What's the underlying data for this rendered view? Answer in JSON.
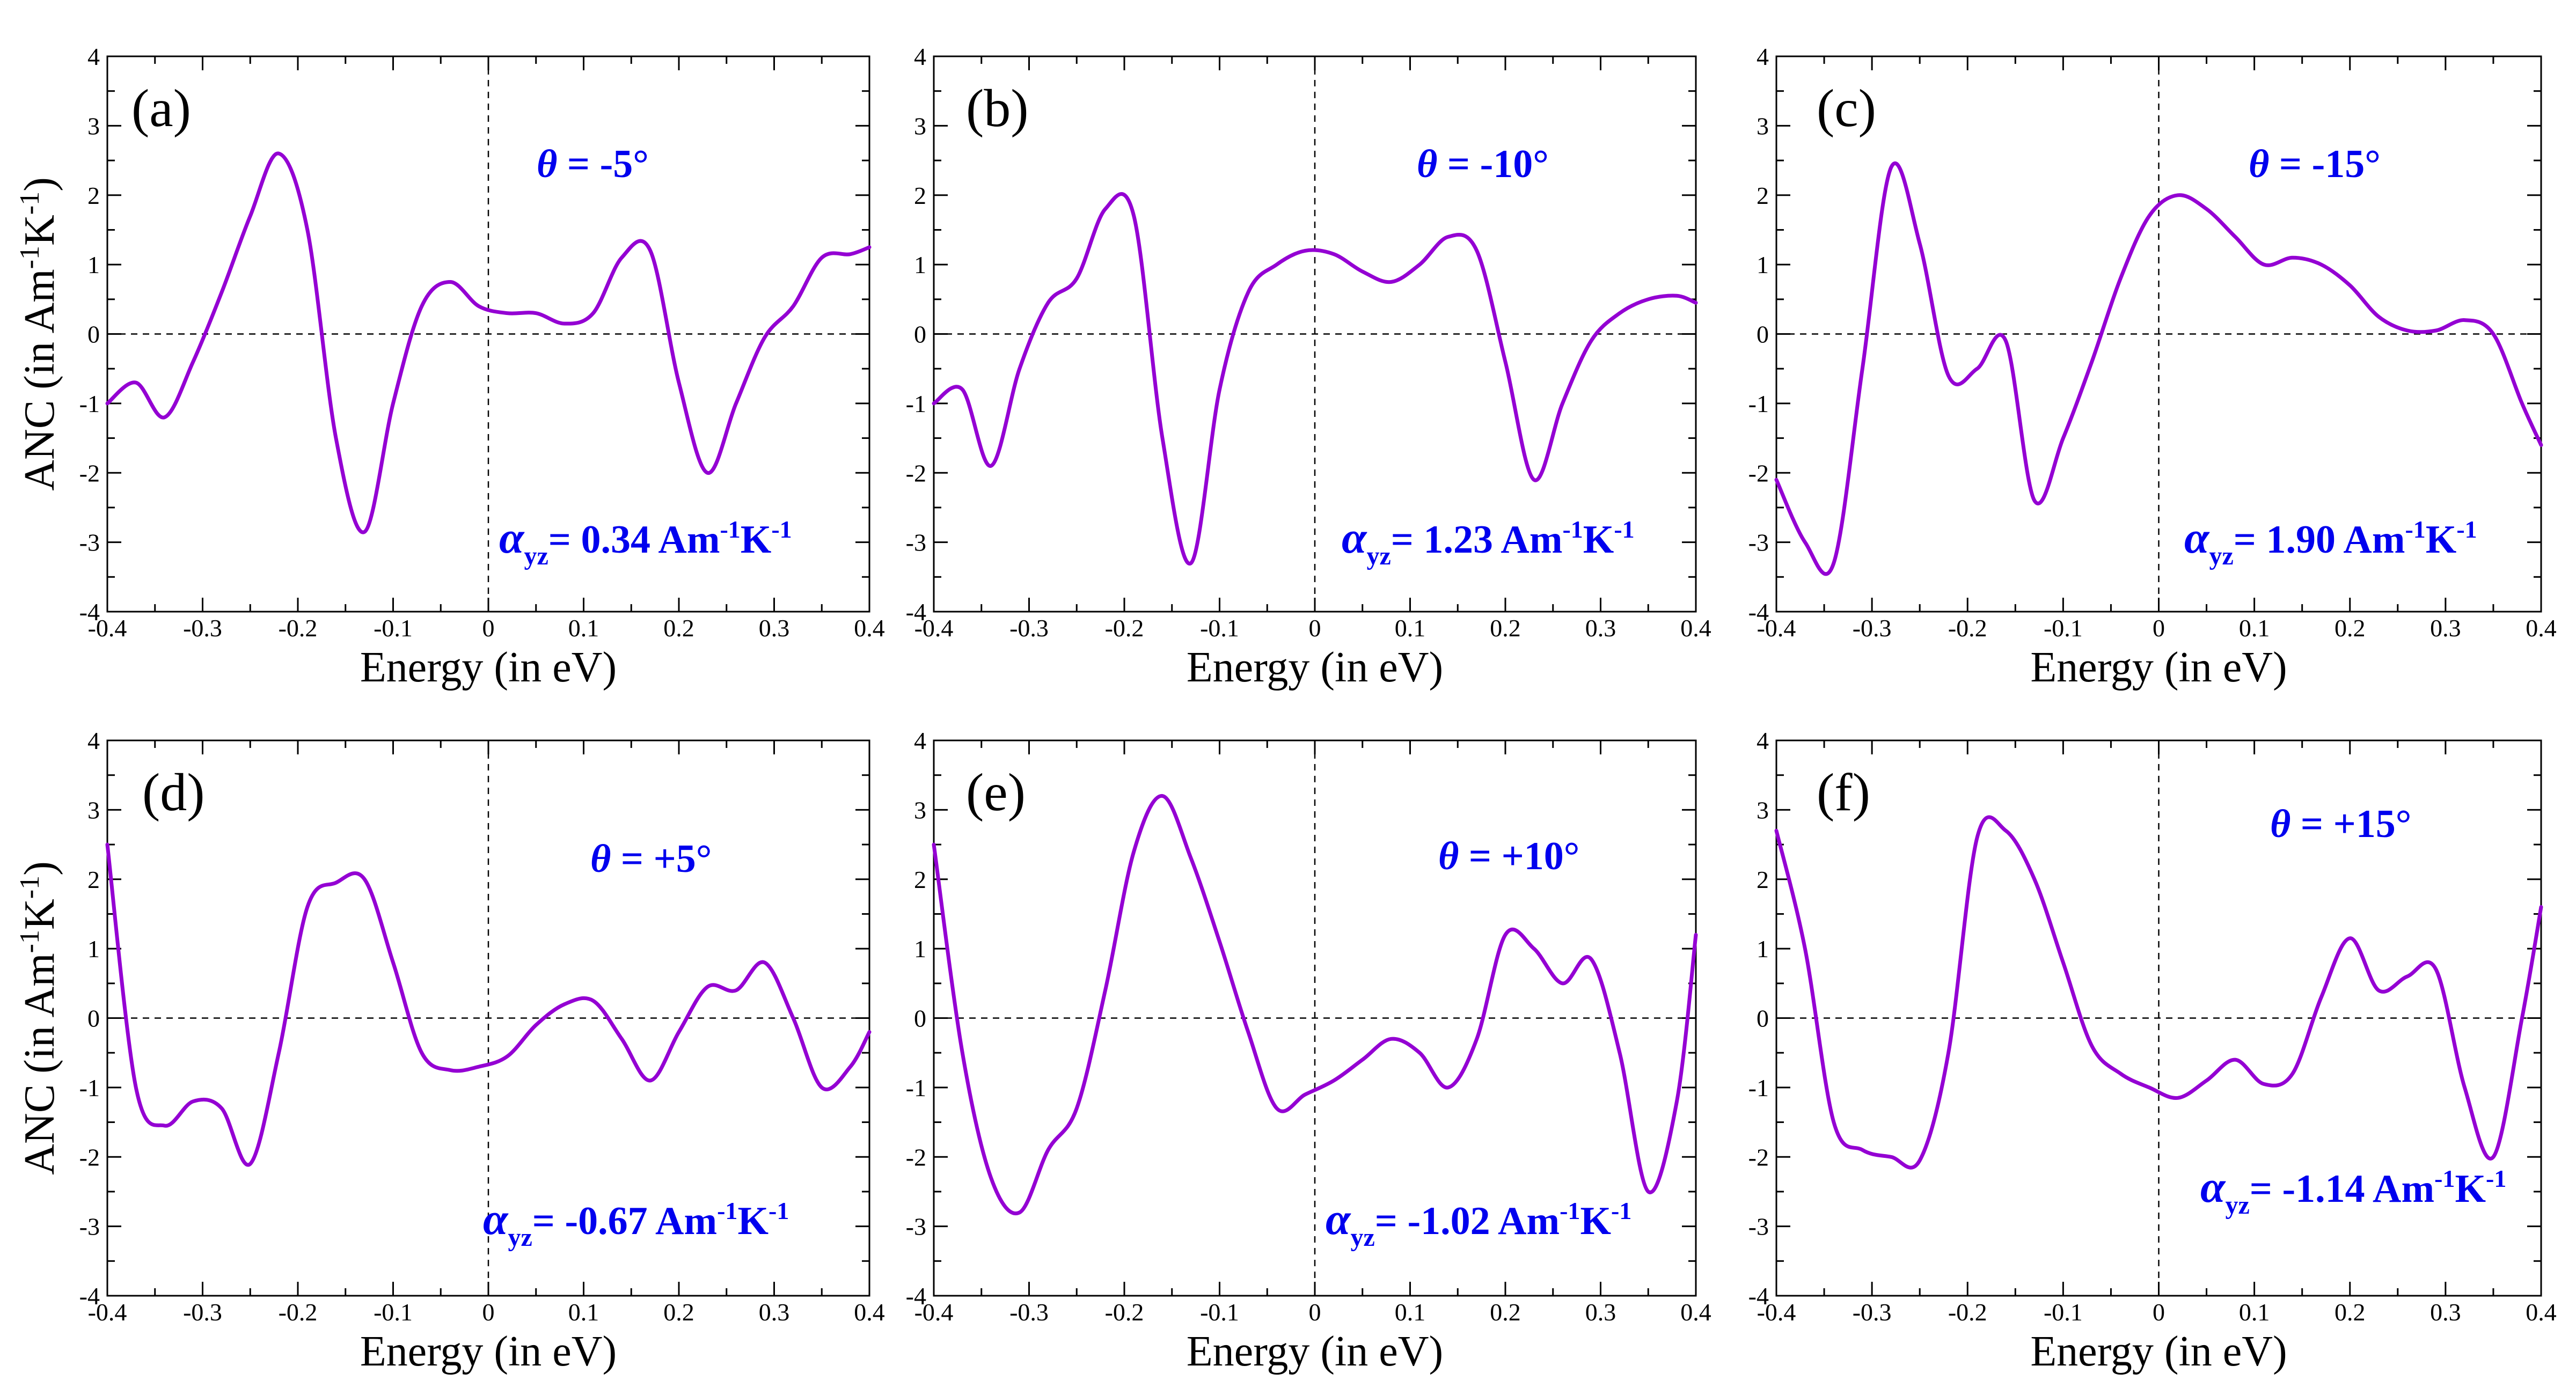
{
  "chart_data": [
    {
      "type": "line",
      "panel": "(a)",
      "theta_label": "θ = -5°",
      "alpha_label": "α",
      "alpha_sub": "yz",
      "alpha_value": "= 0.34 Am",
      "xlabel": "Energy (in eV)",
      "ylabel": "ANC (in Am-1K-1)",
      "xlim": [
        -0.4,
        0.4
      ],
      "ylim": [
        -4,
        4
      ],
      "x": [
        -0.4,
        -0.37,
        -0.34,
        -0.31,
        -0.28,
        -0.25,
        -0.22,
        -0.19,
        -0.16,
        -0.13,
        -0.1,
        -0.07,
        -0.04,
        -0.01,
        0.02,
        0.05,
        0.08,
        0.11,
        0.14,
        0.17,
        0.2,
        0.23,
        0.26,
        0.29,
        0.32,
        0.35,
        0.38,
        0.4
      ],
      "values": [
        -1.0,
        -0.7,
        -1.2,
        -0.4,
        0.6,
        1.7,
        2.6,
        1.5,
        -1.5,
        -2.85,
        -1.0,
        0.4,
        0.75,
        0.4,
        0.3,
        0.3,
        0.15,
        0.3,
        1.1,
        1.2,
        -0.7,
        -2.0,
        -1.0,
        -0.05,
        0.4,
        1.1,
        1.15,
        1.25
      ]
    },
    {
      "type": "line",
      "panel": "(b)",
      "theta_label": "θ = -10°",
      "alpha_label": "α",
      "alpha_sub": "yz",
      "alpha_value": "= 1.23 Am",
      "xlabel": "Energy (in eV)",
      "ylabel": "",
      "xlim": [
        -0.4,
        0.4
      ],
      "ylim": [
        -4,
        4
      ],
      "x": [
        -0.4,
        -0.37,
        -0.34,
        -0.31,
        -0.28,
        -0.25,
        -0.22,
        -0.19,
        -0.16,
        -0.13,
        -0.1,
        -0.07,
        -0.04,
        -0.01,
        0.02,
        0.05,
        0.08,
        0.11,
        0.14,
        0.17,
        0.2,
        0.23,
        0.26,
        0.29,
        0.32,
        0.35,
        0.38,
        0.4
      ],
      "values": [
        -1.0,
        -0.8,
        -1.9,
        -0.5,
        0.45,
        0.8,
        1.8,
        1.7,
        -1.5,
        -3.3,
        -0.8,
        0.6,
        1.0,
        1.2,
        1.15,
        0.9,
        0.75,
        1.0,
        1.4,
        1.2,
        -0.4,
        -2.1,
        -1.0,
        -0.1,
        0.3,
        0.5,
        0.55,
        0.45
      ]
    },
    {
      "type": "line",
      "panel": "(c)",
      "theta_label": "θ = -15°",
      "alpha_label": "α",
      "alpha_sub": "yz",
      "alpha_value": "= 1.90 Am",
      "xlabel": "Energy (in eV)",
      "ylabel": "",
      "xlim": [
        -0.4,
        0.4
      ],
      "ylim": [
        -4,
        4
      ],
      "x": [
        -0.4,
        -0.37,
        -0.34,
        -0.31,
        -0.28,
        -0.25,
        -0.22,
        -0.19,
        -0.16,
        -0.13,
        -0.1,
        -0.07,
        -0.04,
        -0.01,
        0.02,
        0.05,
        0.08,
        0.11,
        0.14,
        0.17,
        0.2,
        0.23,
        0.26,
        0.29,
        0.32,
        0.35,
        0.38,
        0.4
      ],
      "values": [
        -2.1,
        -3.0,
        -3.3,
        -0.5,
        2.4,
        1.3,
        -0.6,
        -0.5,
        -0.1,
        -2.4,
        -1.5,
        -0.4,
        0.8,
        1.7,
        2.0,
        1.8,
        1.4,
        1.0,
        1.1,
        1.0,
        0.7,
        0.25,
        0.05,
        0.05,
        0.2,
        0.0,
        -1.0,
        -1.6
      ]
    },
    {
      "type": "line",
      "panel": "(d)",
      "theta_label": "θ = +5°",
      "alpha_label": "α",
      "alpha_sub": "yz",
      "alpha_value": "= -0.67 Am",
      "xlabel": "Energy (in eV)",
      "ylabel": "ANC (in Am-1K-1)",
      "xlim": [
        -0.4,
        0.4
      ],
      "ylim": [
        -4,
        4
      ],
      "x": [
        -0.4,
        -0.37,
        -0.34,
        -0.31,
        -0.28,
        -0.25,
        -0.22,
        -0.19,
        -0.16,
        -0.13,
        -0.1,
        -0.07,
        -0.04,
        -0.01,
        0.02,
        0.05,
        0.08,
        0.11,
        0.14,
        0.17,
        0.2,
        0.23,
        0.26,
        0.29,
        0.32,
        0.35,
        0.38,
        0.4
      ],
      "values": [
        2.5,
        -1.0,
        -1.55,
        -1.2,
        -1.3,
        -2.1,
        -0.5,
        1.6,
        1.95,
        2.0,
        0.8,
        -0.5,
        -0.75,
        -0.7,
        -0.55,
        -0.1,
        0.2,
        0.25,
        -0.3,
        -0.9,
        -0.2,
        0.45,
        0.4,
        0.8,
        0.0,
        -1.0,
        -0.7,
        -0.2
      ]
    },
    {
      "type": "line",
      "panel": "(e)",
      "theta_label": "θ = +10°",
      "alpha_label": "α",
      "alpha_sub": "yz",
      "alpha_value": "= -1.02 Am",
      "xlabel": "Energy (in eV)",
      "ylabel": "",
      "xlim": [
        -0.4,
        0.4
      ],
      "ylim": [
        -4,
        4
      ],
      "x": [
        -0.4,
        -0.37,
        -0.34,
        -0.31,
        -0.28,
        -0.25,
        -0.22,
        -0.19,
        -0.16,
        -0.13,
        -0.1,
        -0.07,
        -0.04,
        -0.01,
        0.02,
        0.05,
        0.08,
        0.11,
        0.14,
        0.17,
        0.2,
        0.23,
        0.26,
        0.29,
        0.32,
        0.35,
        0.38,
        0.4
      ],
      "values": [
        2.5,
        -0.5,
        -2.3,
        -2.8,
        -1.9,
        -1.3,
        0.4,
        2.4,
        3.2,
        2.3,
        1.1,
        -0.2,
        -1.3,
        -1.1,
        -0.9,
        -0.6,
        -0.3,
        -0.5,
        -1.0,
        -0.3,
        1.2,
        1.0,
        0.5,
        0.85,
        -0.5,
        -2.5,
        -1.2,
        1.2
      ]
    },
    {
      "type": "line",
      "panel": "(f)",
      "theta_label": "θ = +15°",
      "alpha_label": "α",
      "alpha_sub": "yz",
      "alpha_value": "= -1.14 Am",
      "xlabel": "Energy (in eV)",
      "ylabel": "",
      "xlim": [
        -0.4,
        0.4
      ],
      "ylim": [
        -4,
        4
      ],
      "x": [
        -0.4,
        -0.37,
        -0.34,
        -0.31,
        -0.28,
        -0.25,
        -0.22,
        -0.19,
        -0.16,
        -0.13,
        -0.1,
        -0.07,
        -0.04,
        -0.01,
        0.02,
        0.05,
        0.08,
        0.11,
        0.14,
        0.17,
        0.2,
        0.23,
        0.26,
        0.29,
        0.32,
        0.35,
        0.38,
        0.4
      ],
      "values": [
        2.7,
        1.0,
        -1.5,
        -1.9,
        -2.0,
        -2.05,
        -0.5,
        2.6,
        2.7,
        2.0,
        0.8,
        -0.4,
        -0.8,
        -1.0,
        -1.15,
        -0.9,
        -0.6,
        -0.95,
        -0.8,
        0.3,
        1.15,
        0.4,
        0.6,
        0.7,
        -1.0,
        -2.0,
        0.0,
        1.6
      ]
    }
  ],
  "shared": {
    "xlabel": "Energy (in eV)",
    "ylabel_main": "ANC (in Am",
    "ylabel_exp1": "-1",
    "ylabel_mid": "K",
    "ylabel_exp2": "-1",
    "ylabel_end": ")",
    "alpha_unit_exp1": "-1",
    "alpha_unit_k": "K",
    "alpha_unit_exp2": "-1",
    "x_ticks": [
      "-0.4",
      "-0.3",
      "-0.2",
      "-0.1",
      "0",
      "0.1",
      "0.2",
      "0.3",
      "0.4"
    ],
    "y_ticks": [
      "-4",
      "-3",
      "-2",
      "-1",
      "0",
      "1",
      "2",
      "3",
      "4"
    ],
    "curve_color": "#9400d3",
    "annotation_color": "#0000ee"
  }
}
